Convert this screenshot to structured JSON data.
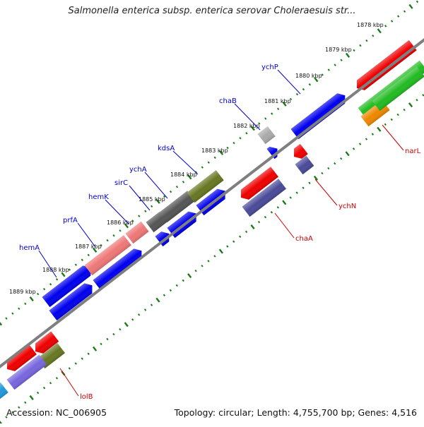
{
  "title": "Salmonella enterica subsp. enterica serovar Choleraesuis str...",
  "accession_text": "Accession: NC_006905",
  "summary_text": "Topology: circular; Length: 4,755,700 bp; Genes: 4,516",
  "colors": {
    "backbone": "#808080",
    "tick": "#1a7a1a",
    "forward_gene": "#0000ee",
    "reverse_gene": "#ee0000",
    "pink_gene": "#ee7777",
    "dark_gray_gene": "#555555",
    "olive_gene": "#667722",
    "slate_gene": "#4a4a99",
    "green_gene": "#22bb22",
    "orange_gene": "#ee8800",
    "light_gray_gene": "#aaaaaa",
    "purple_gene": "#7766dd",
    "cyan_gene": "#2299dd",
    "label_blue": "#0000cc",
    "label_red": "#cc0000"
  },
  "axis": {
    "unit": "kbp",
    "ticks": [
      {
        "label": "1878 kbp",
        "value": 1878
      },
      {
        "label": "1879 kbp",
        "value": 1879
      },
      {
        "label": "1880 kbp",
        "value": 1880
      },
      {
        "label": "1881 kbp",
        "value": 1881
      },
      {
        "label": "1882 kbp",
        "value": 1882
      },
      {
        "label": "1883 kbp",
        "value": 1883
      },
      {
        "label": "1884 kbp",
        "value": 1884
      },
      {
        "label": "1885 kbp",
        "value": 1885
      },
      {
        "label": "1886 kbp",
        "value": 1886
      },
      {
        "label": "1887 kbp",
        "value": 1887
      },
      {
        "label": "1888 kbp",
        "value": 1888
      },
      {
        "label": "1889 kbp",
        "value": 1889
      }
    ]
  },
  "gene_labels": [
    {
      "text": "ychP",
      "strand": "forward"
    },
    {
      "text": "chaB",
      "strand": "forward"
    },
    {
      "text": "kdsA",
      "strand": "forward"
    },
    {
      "text": "ychA",
      "strand": "forward"
    },
    {
      "text": "sirC",
      "strand": "forward"
    },
    {
      "text": "hemK",
      "strand": "forward"
    },
    {
      "text": "prfA",
      "strand": "forward"
    },
    {
      "text": "hemA",
      "strand": "forward"
    },
    {
      "text": "narL",
      "strand": "reverse"
    },
    {
      "text": "ychN",
      "strand": "reverse"
    },
    {
      "text": "chaA",
      "strand": "reverse"
    },
    {
      "text": "lolB",
      "strand": "reverse"
    }
  ]
}
